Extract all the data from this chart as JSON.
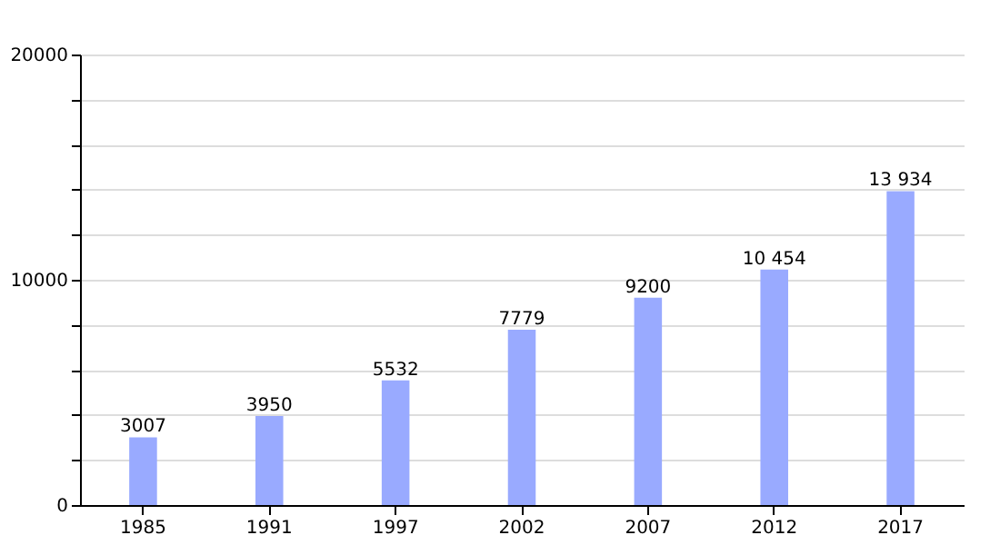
{
  "chart_data": {
    "type": "bar",
    "categories": [
      "1985",
      "1991",
      "1997",
      "2002",
      "2007",
      "2012",
      "2017"
    ],
    "values": [
      3007,
      3950,
      5532,
      7779,
      9200,
      10454,
      13934
    ],
    "value_labels": [
      "3007",
      "3950",
      "5532",
      "7779",
      "9200",
      "10 454",
      "13 934"
    ],
    "color": "#99aaff",
    "ylim": [
      0,
      20000
    ],
    "yticks": [
      0,
      {
        "value": 2000,
        "label": null
      },
      {
        "value": 4000,
        "label": null
      },
      {
        "value": 6000,
        "label": null
      },
      {
        "value": 8000,
        "label": null
      },
      10000,
      {
        "value": 12000,
        "label": null
      },
      {
        "value": 14000,
        "label": null
      },
      {
        "value": 16000,
        "label": null
      },
      {
        "value": 18000,
        "label": null
      },
      20000
    ],
    "grid": "y"
  }
}
